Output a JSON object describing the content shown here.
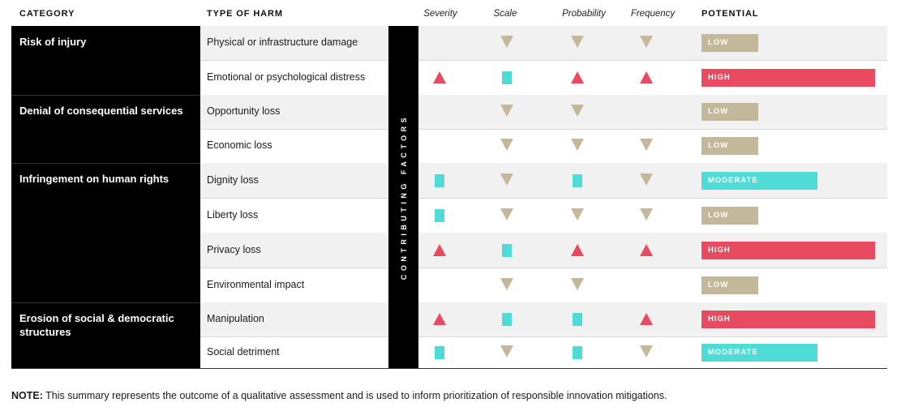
{
  "headers": {
    "category": "CATEGORY",
    "type_of_harm": "TYPE OF HARM",
    "severity": "Severity",
    "scale": "Scale",
    "probability": "Probability",
    "frequency": "Frequency",
    "potential": "POTENTIAL"
  },
  "contributing_factors_label": "CONTRIBUTING FACTORS",
  "categories": [
    {
      "label": "Risk of injury"
    },
    {
      "label": "Denial of consequential services"
    },
    {
      "label": "Infringement on human rights"
    },
    {
      "label": "Erosion of social & democratic structures"
    }
  ],
  "rows": [
    {
      "harm": "Physical or infrastructure damage",
      "severity": "",
      "scale": "low",
      "probability": "low",
      "frequency": "low",
      "potential": "LOW"
    },
    {
      "harm": "Emotional or psychological distress",
      "severity": "high",
      "scale": "moderate",
      "probability": "high",
      "frequency": "high",
      "potential": "HIGH"
    },
    {
      "harm": "Opportunity loss",
      "severity": "",
      "scale": "low",
      "probability": "low",
      "frequency": "",
      "potential": "LOW"
    },
    {
      "harm": "Economic loss",
      "severity": "",
      "scale": "low",
      "probability": "low",
      "frequency": "low",
      "potential": "LOW"
    },
    {
      "harm": "Dignity loss",
      "severity": "moderate",
      "scale": "low",
      "probability": "moderate",
      "frequency": "low",
      "potential": "MODERATE"
    },
    {
      "harm": "Liberty loss",
      "severity": "moderate",
      "scale": "low",
      "probability": "low",
      "frequency": "low",
      "potential": "LOW"
    },
    {
      "harm": "Privacy loss",
      "severity": "high",
      "scale": "moderate",
      "probability": "high",
      "frequency": "high",
      "potential": "HIGH"
    },
    {
      "harm": "Environmental impact",
      "severity": "",
      "scale": "low",
      "probability": "low",
      "frequency": "",
      "potential": "LOW"
    },
    {
      "harm": "Manipulation",
      "severity": "high",
      "scale": "moderate",
      "probability": "moderate",
      "frequency": "high",
      "potential": "HIGH"
    },
    {
      "harm": "Social detriment",
      "severity": "moderate",
      "scale": "low",
      "probability": "moderate",
      "frequency": "low",
      "potential": "MODERATE"
    }
  ],
  "colors": {
    "high": "#e84a5f",
    "moderate": "#4fdcd6",
    "low": "#c4b89a",
    "black": "#000000"
  },
  "potential_levels": {
    "LOW": 0.33,
    "MODERATE": 0.66,
    "HIGH": 1.0
  },
  "note": {
    "prefix": "NOTE:",
    "text": " This summary represents the outcome of a qualitative assessment and is used to inform prioritization of responsible innovation mitigations."
  }
}
